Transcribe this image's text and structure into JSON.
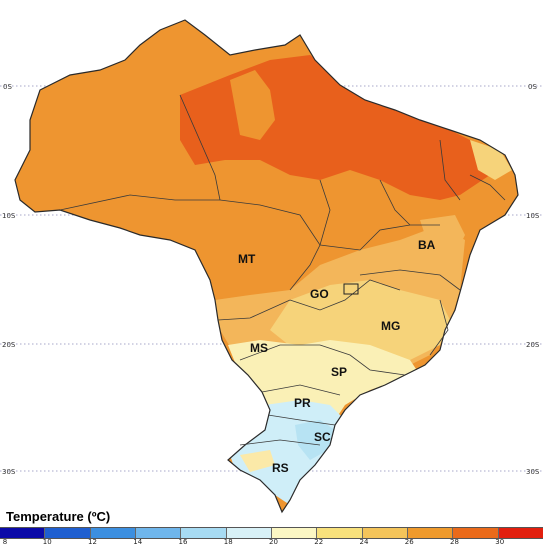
{
  "map": {
    "latitude_labels": [
      "0S",
      "10S",
      "20S",
      "30S"
    ],
    "states": [
      {
        "code": "MT"
      },
      {
        "code": "BA"
      },
      {
        "code": "GO"
      },
      {
        "code": "MG"
      },
      {
        "code": "MS"
      },
      {
        "code": "SP"
      },
      {
        "code": "PR"
      },
      {
        "code": "SC"
      },
      {
        "code": "RS"
      }
    ]
  },
  "legend": {
    "title": "Temperature (ºC)",
    "ticks": [
      "8",
      "10",
      "12",
      "14",
      "16",
      "18",
      "20",
      "22",
      "24",
      "26",
      "28",
      "30"
    ],
    "colors": [
      "#0b0aa8",
      "#1f5fd0",
      "#3c8fe0",
      "#6fb6ec",
      "#a7dbf3",
      "#d8f1f7",
      "#fbf7c4",
      "#f8e17c",
      "#f4c45a",
      "#ef9a2c",
      "#ea6a1a",
      "#e21f0e"
    ]
  },
  "zone_colors": {
    "very_hot": "#e8601c",
    "hot": "#ee9530",
    "warm": "#f3b65a",
    "mild": "#f6d37a",
    "cool": "#faf0b6",
    "cold": "#cfeef8",
    "colder": "#b7e3f3",
    "coast": "#fbe9a8"
  }
}
